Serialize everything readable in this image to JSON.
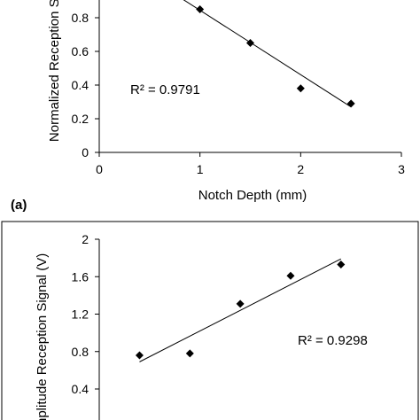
{
  "chart_data": [
    {
      "type": "scatter",
      "panel_label": "(a)",
      "xlabel": "Notch Depth (mm)",
      "ylabel": "Normalized Reception Si",
      "xlim": [
        0,
        3
      ],
      "ylim": [
        0,
        1
      ],
      "x_ticks": [
        "0",
        "1",
        "2",
        "3"
      ],
      "y_ticks": [
        "0",
        "0.2",
        "0.4",
        "0.6",
        "0.8"
      ],
      "points": [
        {
          "x": 1.0,
          "y": 0.85
        },
        {
          "x": 1.5,
          "y": 0.65
        },
        {
          "x": 2.0,
          "y": 0.38
        },
        {
          "x": 2.5,
          "y": 0.29
        }
      ],
      "trendline": {
        "x": [
          0.75,
          2.5
        ],
        "y": [
          0.94,
          0.27
        ]
      },
      "r2_label": "R² = 0.9791",
      "grid": false,
      "legend": "none"
    },
    {
      "type": "scatter",
      "xlabel": "",
      "ylabel": "nplitude Reception Signal (V)",
      "xlim": [
        0,
        3
      ],
      "ylim": [
        0.4,
        2
      ],
      "y_ticks": [
        "0.4",
        "0.8",
        "1.2",
        "1.6",
        "2"
      ],
      "points": [
        {
          "x": 0.4,
          "y": 0.76
        },
        {
          "x": 0.9,
          "y": 0.78
        },
        {
          "x": 1.4,
          "y": 1.31
        },
        {
          "x": 1.9,
          "y": 1.61
        },
        {
          "x": 2.4,
          "y": 1.73
        }
      ],
      "trendline": {
        "x": [
          0.4,
          2.4
        ],
        "y": [
          0.69,
          1.79
        ]
      },
      "r2_label": "R² = 0.9298",
      "grid": false,
      "legend": "none"
    }
  ]
}
